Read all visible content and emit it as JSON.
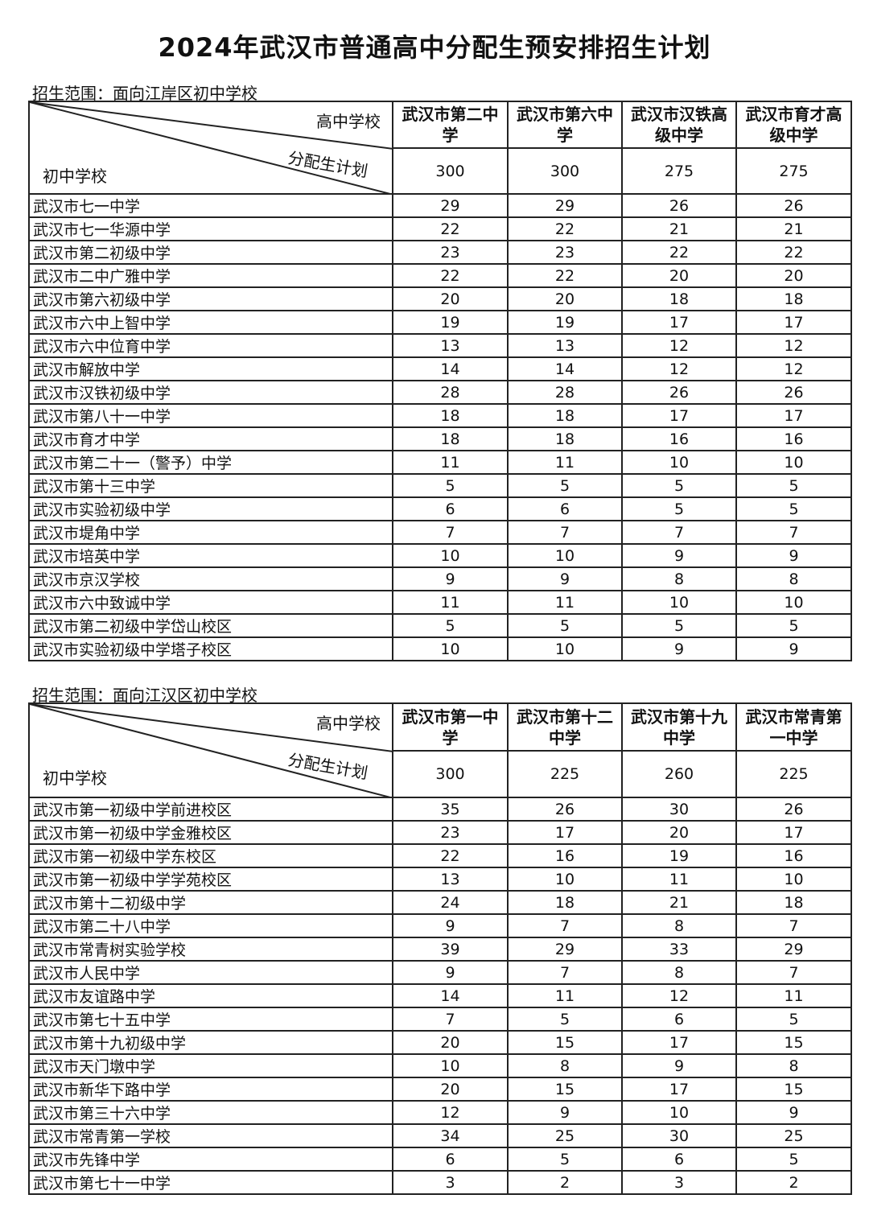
{
  "title": "2024年武汉市普通高中分配生预安排招生计划",
  "corner": {
    "high_school": "高中学校",
    "plan": "分配生计划",
    "junior_school": "初中学校"
  },
  "sections": [
    {
      "scope": "招生范围：面向江岸区初中学校",
      "high_schools": [
        "武汉市第二中学",
        "武汉市第六中学",
        "武汉市汉铁高级中学",
        "武汉市育才高级中学"
      ],
      "totals": [
        "300",
        "300",
        "275",
        "275"
      ],
      "rows": [
        {
          "name": "武汉市七一中学",
          "values": [
            "29",
            "29",
            "26",
            "26"
          ]
        },
        {
          "name": "武汉市七一华源中学",
          "values": [
            "22",
            "22",
            "21",
            "21"
          ]
        },
        {
          "name": "武汉市第二初级中学",
          "values": [
            "23",
            "23",
            "22",
            "22"
          ]
        },
        {
          "name": "武汉市二中广雅中学",
          "values": [
            "22",
            "22",
            "20",
            "20"
          ]
        },
        {
          "name": "武汉市第六初级中学",
          "values": [
            "20",
            "20",
            "18",
            "18"
          ]
        },
        {
          "name": "武汉市六中上智中学",
          "values": [
            "19",
            "19",
            "17",
            "17"
          ]
        },
        {
          "name": "武汉市六中位育中学",
          "values": [
            "13",
            "13",
            "12",
            "12"
          ]
        },
        {
          "name": "武汉市解放中学",
          "values": [
            "14",
            "14",
            "12",
            "12"
          ]
        },
        {
          "name": "武汉市汉铁初级中学",
          "values": [
            "28",
            "28",
            "26",
            "26"
          ]
        },
        {
          "name": "武汉市第八十一中学",
          "values": [
            "18",
            "18",
            "17",
            "17"
          ]
        },
        {
          "name": "武汉市育才中学",
          "values": [
            "18",
            "18",
            "16",
            "16"
          ]
        },
        {
          "name": "武汉市第二十一（警予）中学",
          "values": [
            "11",
            "11",
            "10",
            "10"
          ]
        },
        {
          "name": "武汉市第十三中学",
          "values": [
            "5",
            "5",
            "5",
            "5"
          ]
        },
        {
          "name": "武汉市实验初级中学",
          "values": [
            "6",
            "6",
            "5",
            "5"
          ]
        },
        {
          "name": "武汉市堤角中学",
          "values": [
            "7",
            "7",
            "7",
            "7"
          ]
        },
        {
          "name": "武汉市培英中学",
          "values": [
            "10",
            "10",
            "9",
            "9"
          ]
        },
        {
          "name": "武汉市京汉学校",
          "values": [
            "9",
            "9",
            "8",
            "8"
          ]
        },
        {
          "name": "武汉市六中致诚中学",
          "values": [
            "11",
            "11",
            "10",
            "10"
          ]
        },
        {
          "name": "武汉市第二初级中学岱山校区",
          "values": [
            "5",
            "5",
            "5",
            "5"
          ]
        },
        {
          "name": "武汉市实验初级中学塔子校区",
          "values": [
            "10",
            "10",
            "9",
            "9"
          ]
        }
      ]
    },
    {
      "scope": "招生范围：面向江汉区初中学校",
      "high_schools": [
        "武汉市第一中学",
        "武汉市第十二中学",
        "武汉市第十九中学",
        "武汉市常青第一中学"
      ],
      "totals": [
        "300",
        "225",
        "260",
        "225"
      ],
      "rows": [
        {
          "name": "武汉市第一初级中学前进校区",
          "values": [
            "35",
            "26",
            "30",
            "26"
          ]
        },
        {
          "name": "武汉市第一初级中学金雅校区",
          "values": [
            "23",
            "17",
            "20",
            "17"
          ]
        },
        {
          "name": "武汉市第一初级中学东校区",
          "values": [
            "22",
            "16",
            "19",
            "16"
          ]
        },
        {
          "name": "武汉市第一初级中学学苑校区",
          "values": [
            "13",
            "10",
            "11",
            "10"
          ]
        },
        {
          "name": "武汉市第十二初级中学",
          "values": [
            "24",
            "18",
            "21",
            "18"
          ]
        },
        {
          "name": "武汉市第二十八中学",
          "values": [
            "9",
            "7",
            "8",
            "7"
          ]
        },
        {
          "name": "武汉市常青树实验学校",
          "values": [
            "39",
            "29",
            "33",
            "29"
          ]
        },
        {
          "name": "武汉市人民中学",
          "values": [
            "9",
            "7",
            "8",
            "7"
          ]
        },
        {
          "name": "武汉市友谊路中学",
          "values": [
            "14",
            "11",
            "12",
            "11"
          ]
        },
        {
          "name": "武汉市第七十五中学",
          "values": [
            "7",
            "5",
            "6",
            "5"
          ]
        },
        {
          "name": "武汉市第十九初级中学",
          "values": [
            "20",
            "15",
            "17",
            "15"
          ]
        },
        {
          "name": "武汉市天门墩中学",
          "values": [
            "10",
            "8",
            "9",
            "8"
          ]
        },
        {
          "name": "武汉市新华下路中学",
          "values": [
            "20",
            "15",
            "17",
            "15"
          ]
        },
        {
          "name": "武汉市第三十六中学",
          "values": [
            "12",
            "9",
            "10",
            "9"
          ]
        },
        {
          "name": "武汉市常青第一学校",
          "values": [
            "34",
            "25",
            "30",
            "25"
          ]
        },
        {
          "name": "武汉市先锋中学",
          "values": [
            "6",
            "5",
            "6",
            "5"
          ]
        },
        {
          "name": "武汉市第七十一中学",
          "values": [
            "3",
            "2",
            "3",
            "2"
          ]
        }
      ]
    }
  ]
}
